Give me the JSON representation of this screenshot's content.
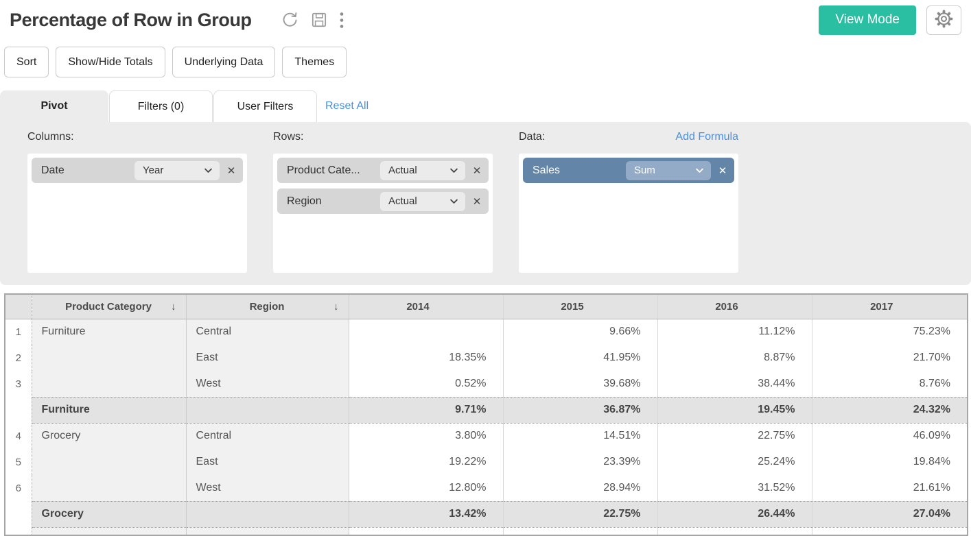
{
  "header": {
    "title": "Percentage of Row in Group",
    "view_mode_label": "View Mode",
    "icons": [
      "refresh-icon",
      "save-icon",
      "kebab-menu-icon",
      "gear-icon"
    ]
  },
  "toolbar": {
    "buttons": [
      "Sort",
      "Show/Hide Totals",
      "Underlying Data",
      "Themes"
    ]
  },
  "tabs": {
    "items": [
      {
        "label": "Pivot",
        "active": true
      },
      {
        "label": "Filters (0)",
        "active": false
      },
      {
        "label": "User Filters",
        "active": false
      }
    ],
    "reset_all_label": "Reset All"
  },
  "pivot_panel": {
    "columns": {
      "label": "Columns:",
      "fields": [
        {
          "name": "Date",
          "option": "Year"
        }
      ]
    },
    "rows": {
      "label": "Rows:",
      "fields": [
        {
          "name": "Product Cate...",
          "option": "Actual"
        },
        {
          "name": "Region",
          "option": "Actual"
        }
      ]
    },
    "data": {
      "label": "Data:",
      "add_formula_label": "Add Formula",
      "fields": [
        {
          "name": "Sales",
          "option": "Sum"
        }
      ]
    }
  },
  "table": {
    "headers": [
      "",
      "Product Category",
      "Region",
      "2014",
      "2015",
      "2016",
      "2017"
    ],
    "sort_indicator": "↓",
    "sorted_columns": [
      "Product Category",
      "Region"
    ],
    "rows": [
      {
        "type": "data",
        "num": "1",
        "category": "Furniture",
        "region": "Central",
        "values": [
          "",
          "9.66%",
          "11.12%",
          "75.23%"
        ]
      },
      {
        "type": "data",
        "num": "2",
        "category": "",
        "region": "East",
        "values": [
          "18.35%",
          "41.95%",
          "8.87%",
          "21.70%"
        ]
      },
      {
        "type": "data",
        "num": "3",
        "category": "",
        "region": "West",
        "values": [
          "0.52%",
          "39.68%",
          "38.44%",
          "8.76%"
        ]
      },
      {
        "type": "total",
        "num": "",
        "category": "Furniture",
        "region": "",
        "values": [
          "9.71%",
          "36.87%",
          "19.45%",
          "24.32%"
        ]
      },
      {
        "type": "data",
        "num": "4",
        "category": "Grocery",
        "region": "Central",
        "values": [
          "3.80%",
          "14.51%",
          "22.75%",
          "46.09%"
        ]
      },
      {
        "type": "data",
        "num": "5",
        "category": "",
        "region": "East",
        "values": [
          "19.22%",
          "23.39%",
          "25.24%",
          "19.84%"
        ]
      },
      {
        "type": "data",
        "num": "6",
        "category": "",
        "region": "West",
        "values": [
          "12.80%",
          "28.94%",
          "31.52%",
          "21.61%"
        ]
      },
      {
        "type": "total",
        "num": "",
        "category": "Grocery",
        "region": "",
        "values": [
          "13.42%",
          "22.75%",
          "26.44%",
          "27.04%"
        ]
      },
      {
        "type": "partial",
        "num": "",
        "category": "",
        "region": "",
        "values": [
          "",
          "",
          "",
          ""
        ]
      }
    ]
  },
  "colors": {
    "accent_teal": "#2abfa3",
    "link_blue": "#4a90e2",
    "data_chip_blue": "#6285a8",
    "data_chip_select_blue": "#93abc6",
    "panel_grey": "#ececec",
    "chip_grey": "#d6d6d6",
    "table_header_grey": "#e3e3e3"
  }
}
